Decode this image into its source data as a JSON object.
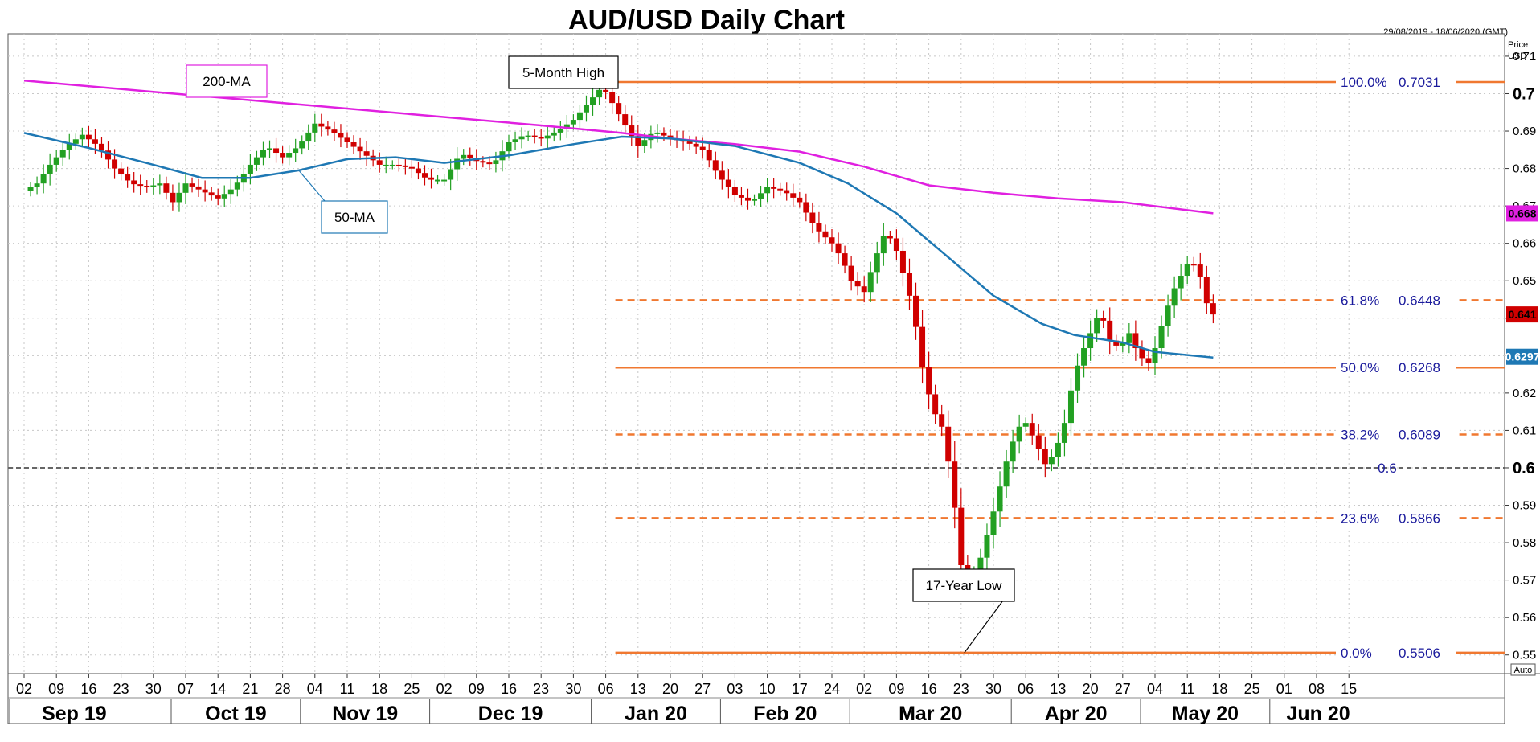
{
  "chart_data": {
    "type": "candlestick",
    "title": "AUD/USD Daily Chart",
    "date_range": "29/08/2019 - 18/06/2020 (GMT)",
    "y_axis_label": [
      "Price",
      "USD"
    ],
    "ylim": [
      0.545,
      0.716
    ],
    "y_ticks": [
      0.55,
      0.56,
      0.57,
      0.58,
      0.59,
      0.6,
      0.61,
      0.62,
      0.63,
      0.64,
      0.65,
      0.66,
      0.67,
      0.68,
      0.69,
      0.7,
      0.71
    ],
    "y_tick_labels": [
      "0.55",
      "0.56",
      "0.57",
      "0.58",
      "0.59",
      "0.6",
      "0.61",
      "0.62",
      "0.63",
      "0.64",
      "0.65",
      "0.66",
      "0.67",
      "0.68",
      "0.69",
      "0.7",
      "0.71"
    ],
    "emphasized_ticks": [
      "0.6",
      "0.7"
    ],
    "x_day_ticks": [
      "02",
      "09",
      "16",
      "23",
      "30",
      "07",
      "14",
      "21",
      "28",
      "04",
      "11",
      "18",
      "25",
      "02",
      "09",
      "16",
      "23",
      "30",
      "06",
      "13",
      "20",
      "27",
      "03",
      "10",
      "17",
      "24",
      "02",
      "09",
      "16",
      "23",
      "30",
      "06",
      "13",
      "20",
      "27",
      "04",
      "11",
      "18",
      "25",
      "01",
      "08",
      "15"
    ],
    "months": [
      "Sep 19",
      "Oct 19",
      "Nov 19",
      "Dec 19",
      "Jan 20",
      "Feb 20",
      "Mar 20",
      "Apr 20",
      "May 20",
      "Jun 20"
    ],
    "month_start_week": [
      0,
      5,
      9,
      13,
      18,
      22,
      26,
      31,
      35,
      39
    ],
    "month_end_week": [
      4,
      9,
      13,
      18,
      22,
      26,
      31,
      35,
      39,
      42
    ],
    "auto_label": "Auto",
    "price_anchors_week_value": [
      [
        0,
        0.674
      ],
      [
        0.4,
        0.676
      ],
      [
        0.8,
        0.681
      ],
      [
        1.3,
        0.686
      ],
      [
        1.8,
        0.689
      ],
      [
        2.3,
        0.686
      ],
      [
        2.8,
        0.68
      ],
      [
        3.3,
        0.676
      ],
      [
        3.8,
        0.675
      ],
      [
        4.2,
        0.676
      ],
      [
        4.6,
        0.671
      ],
      [
        5.0,
        0.676
      ],
      [
        5.5,
        0.674
      ],
      [
        6.0,
        0.672
      ],
      [
        6.5,
        0.675
      ],
      [
        7.0,
        0.681
      ],
      [
        7.5,
        0.686
      ],
      [
        8.0,
        0.683
      ],
      [
        8.5,
        0.686
      ],
      [
        9.0,
        0.692
      ],
      [
        9.5,
        0.69
      ],
      [
        10.0,
        0.687
      ],
      [
        10.5,
        0.684
      ],
      [
        11.0,
        0.681
      ],
      [
        11.5,
        0.681
      ],
      [
        12.0,
        0.68
      ],
      [
        12.5,
        0.677
      ],
      [
        13.0,
        0.677
      ],
      [
        13.5,
        0.684
      ],
      [
        14.0,
        0.682
      ],
      [
        14.5,
        0.681
      ],
      [
        15.0,
        0.687
      ],
      [
        15.5,
        0.689
      ],
      [
        16.0,
        0.688
      ],
      [
        16.5,
        0.69
      ],
      [
        17.0,
        0.693
      ],
      [
        17.5,
        0.698
      ],
      [
        17.9,
        0.702
      ],
      [
        18.3,
        0.696
      ],
      [
        18.7,
        0.69
      ],
      [
        19.0,
        0.686
      ],
      [
        19.5,
        0.69
      ],
      [
        20.0,
        0.688
      ],
      [
        20.5,
        0.687
      ],
      [
        21.0,
        0.685
      ],
      [
        21.5,
        0.678
      ],
      [
        22.0,
        0.673
      ],
      [
        22.5,
        0.671
      ],
      [
        23.0,
        0.675
      ],
      [
        23.5,
        0.674
      ],
      [
        24.0,
        0.671
      ],
      [
        24.5,
        0.664
      ],
      [
        25.0,
        0.66
      ],
      [
        25.3,
        0.656
      ],
      [
        25.6,
        0.65
      ],
      [
        26.0,
        0.647
      ],
      [
        26.3,
        0.655
      ],
      [
        26.6,
        0.662
      ],
      [
        26.9,
        0.661
      ],
      [
        27.2,
        0.652
      ],
      [
        27.5,
        0.643
      ],
      [
        27.8,
        0.627
      ],
      [
        28.1,
        0.616
      ],
      [
        28.4,
        0.611
      ],
      [
        28.7,
        0.597
      ],
      [
        29.0,
        0.574
      ],
      [
        29.3,
        0.569
      ],
      [
        29.6,
        0.576
      ],
      [
        29.9,
        0.585
      ],
      [
        30.2,
        0.595
      ],
      [
        30.5,
        0.605
      ],
      [
        30.8,
        0.611
      ],
      [
        31.0,
        0.612
      ],
      [
        31.3,
        0.607
      ],
      [
        31.6,
        0.601
      ],
      [
        31.9,
        0.604
      ],
      [
        32.2,
        0.612
      ],
      [
        32.5,
        0.625
      ],
      [
        32.8,
        0.632
      ],
      [
        33.0,
        0.636
      ],
      [
        33.3,
        0.642
      ],
      [
        33.6,
        0.634
      ],
      [
        33.9,
        0.632
      ],
      [
        34.2,
        0.636
      ],
      [
        34.5,
        0.63
      ],
      [
        34.8,
        0.628
      ],
      [
        35.0,
        0.632
      ],
      [
        35.3,
        0.641
      ],
      [
        35.6,
        0.648
      ],
      [
        35.9,
        0.653
      ],
      [
        36.1,
        0.656
      ],
      [
        36.4,
        0.651
      ],
      [
        36.6,
        0.644
      ],
      [
        36.8,
        0.641
      ]
    ],
    "series": [
      {
        "name": "200-MA",
        "color": "#e020e0",
        "points_week_value": [
          [
            0,
            0.7035
          ],
          [
            4,
            0.7005
          ],
          [
            8,
            0.6975
          ],
          [
            12,
            0.6945
          ],
          [
            16,
            0.6915
          ],
          [
            18.5,
            0.6895
          ],
          [
            20,
            0.688
          ],
          [
            22,
            0.6865
          ],
          [
            24,
            0.6845
          ],
          [
            26,
            0.6805
          ],
          [
            28,
            0.6755
          ],
          [
            30,
            0.6735
          ],
          [
            32,
            0.672
          ],
          [
            34,
            0.671
          ],
          [
            36.8,
            0.668
          ]
        ]
      },
      {
        "name": "50-MA",
        "color": "#1e78b4",
        "points_week_value": [
          [
            0,
            0.6895
          ],
          [
            2,
            0.6855
          ],
          [
            4,
            0.681
          ],
          [
            5.5,
            0.6775
          ],
          [
            7,
            0.6775
          ],
          [
            8.5,
            0.6795
          ],
          [
            10,
            0.6825
          ],
          [
            11.5,
            0.683
          ],
          [
            13,
            0.6815
          ],
          [
            15,
            0.6835
          ],
          [
            17,
            0.6865
          ],
          [
            18.5,
            0.6885
          ],
          [
            20,
            0.688
          ],
          [
            22,
            0.686
          ],
          [
            24,
            0.6815
          ],
          [
            25.5,
            0.676
          ],
          [
            27,
            0.668
          ],
          [
            28.5,
            0.657
          ],
          [
            30,
            0.646
          ],
          [
            31.5,
            0.6385
          ],
          [
            32.5,
            0.6355
          ],
          [
            34,
            0.6335
          ],
          [
            35,
            0.631
          ],
          [
            36.8,
            0.6295
          ]
        ]
      }
    ],
    "fibonacci": [
      {
        "label": "100.0%",
        "value": "0.7031",
        "level": 0.7031,
        "style": "solid",
        "start_week": 18
      },
      {
        "label": "61.8%",
        "value": "0.6448",
        "level": 0.6448,
        "style": "dashed",
        "start_week": 18
      },
      {
        "label": "50.0%",
        "value": "0.6268",
        "level": 0.6268,
        "style": "solid",
        "start_week": 18
      },
      {
        "label": "38.2%",
        "value": "0.6089",
        "level": 0.6089,
        "style": "dashed",
        "start_week": 18
      },
      {
        "label": "23.6%",
        "value": "0.5866",
        "level": 0.5866,
        "style": "dashed",
        "start_week": 18
      },
      {
        "label": "0.0%",
        "value": "0.5506",
        "level": 0.5506,
        "style": "solid",
        "start_week": 18
      }
    ],
    "fib_color": "#f07830",
    "reference_line": {
      "level": 0.6,
      "label": "0.6",
      "color": "#666666"
    },
    "price_tags": [
      {
        "value": "0.668",
        "level": 0.668,
        "bg": "#e020e0",
        "fg": "#000000"
      },
      {
        "value": "0.641",
        "level": 0.641,
        "bg": "#d00000",
        "fg": "#000000"
      },
      {
        "value": "0.6297",
        "level": 0.6297,
        "bg": "#1e78b4",
        "fg": "#ffffff"
      }
    ],
    "annotations": [
      {
        "text": "5-Month High",
        "week": 17.9,
        "level": 0.7031,
        "border": "#000000",
        "color": "#000000"
      },
      {
        "text": "200-MA",
        "week": 6.5,
        "level": 0.6995,
        "border": "#e020e0",
        "color": "#e020e0"
      },
      {
        "text": "50-MA",
        "week": 8.5,
        "level": 0.6795,
        "border": "#1e78b4",
        "color": "#1e78b4"
      },
      {
        "text": "17-Year Low",
        "week": 29.1,
        "level": 0.5506,
        "border": "#000000",
        "color": "#000000"
      }
    ],
    "candle_colors": {
      "up": "#22a022",
      "down": "#d00000"
    }
  }
}
